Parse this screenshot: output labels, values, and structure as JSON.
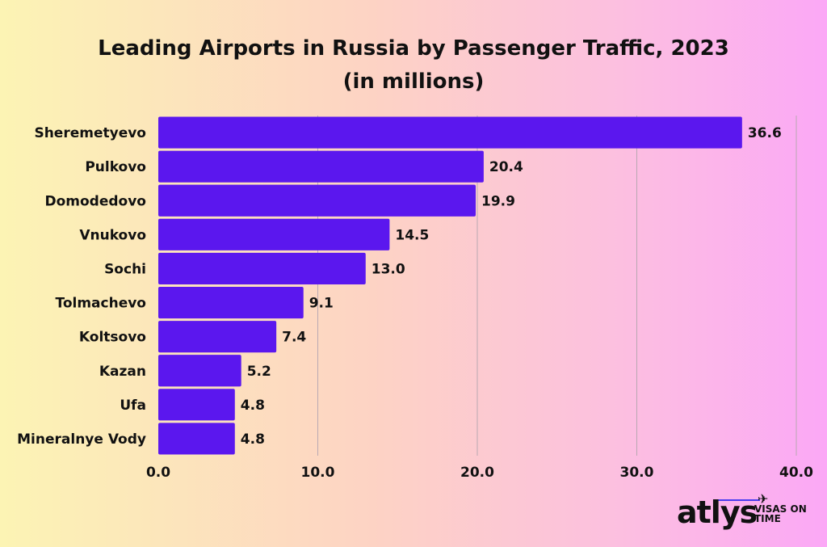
{
  "chart_data": {
    "type": "bar",
    "orientation": "horizontal",
    "title_line1": "Leading Airports in Russia by Passenger Traffic, 2023",
    "title_line2": "(in millions)",
    "categories": [
      "Sheremetyevo",
      "Pulkovo",
      "Domodedovo",
      "Vnukovo",
      "Sochi",
      "Tolmachevo",
      "Koltsovo",
      "Kazan",
      "Ufa",
      "Mineralnye Vody"
    ],
    "values": [
      36.6,
      20.4,
      19.9,
      14.5,
      13.0,
      9.1,
      7.4,
      5.2,
      4.8,
      4.8
    ],
    "value_labels": [
      "36.6",
      "20.4",
      "19.9",
      "14.5",
      "13.0",
      "9.1",
      "7.4",
      "5.2",
      "4.8",
      "4.8"
    ],
    "xlim": [
      0,
      40
    ],
    "xticks": [
      0,
      10,
      20,
      30,
      40
    ],
    "xtick_labels": [
      "0.0",
      "10.0",
      "20.0",
      "30.0",
      "40.0"
    ],
    "grid": true,
    "bar_color": "#5b17ee",
    "grid_color": "#b9a9b2"
  },
  "logo": {
    "word": "atlys",
    "tagline": "VISAS ON TIME",
    "plane_icon": "airplane-icon"
  }
}
